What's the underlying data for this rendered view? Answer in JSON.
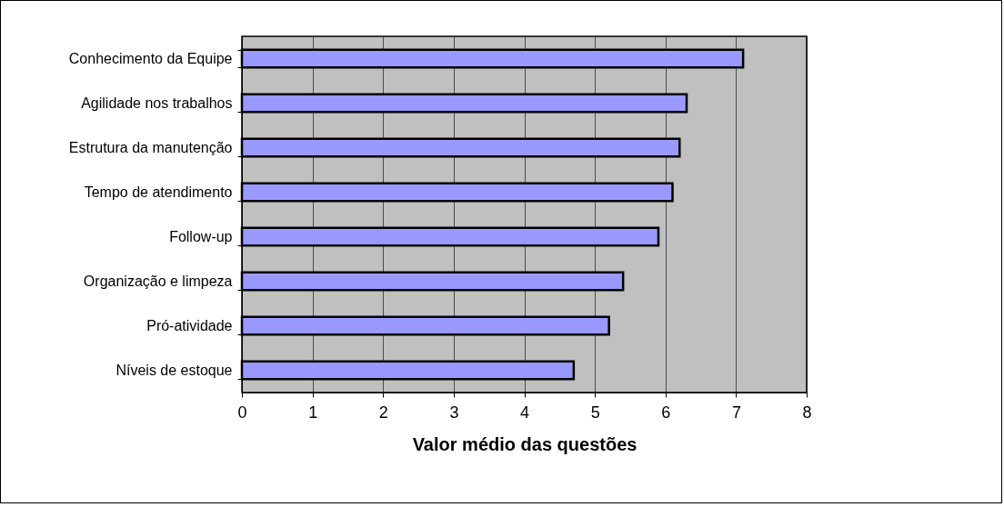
{
  "chart_data": {
    "type": "bar",
    "orientation": "horizontal",
    "xlabel": "Valor médio das questões",
    "categories": [
      "Conhecimento da Equipe",
      "Agilidade nos trabalhos",
      "Estrutura da manutenção",
      "Tempo de atendimento",
      "Follow-up",
      "Organização e limpeza",
      "Pró-atividade",
      "Níveis de estoque"
    ],
    "values": [
      7.1,
      6.3,
      6.2,
      6.1,
      5.9,
      5.4,
      5.2,
      4.7
    ],
    "color": "#9999ff",
    "xlim": [
      0,
      8
    ],
    "xticks": [
      0,
      1,
      2,
      3,
      4,
      5,
      6,
      7,
      8
    ],
    "grid": "x"
  }
}
